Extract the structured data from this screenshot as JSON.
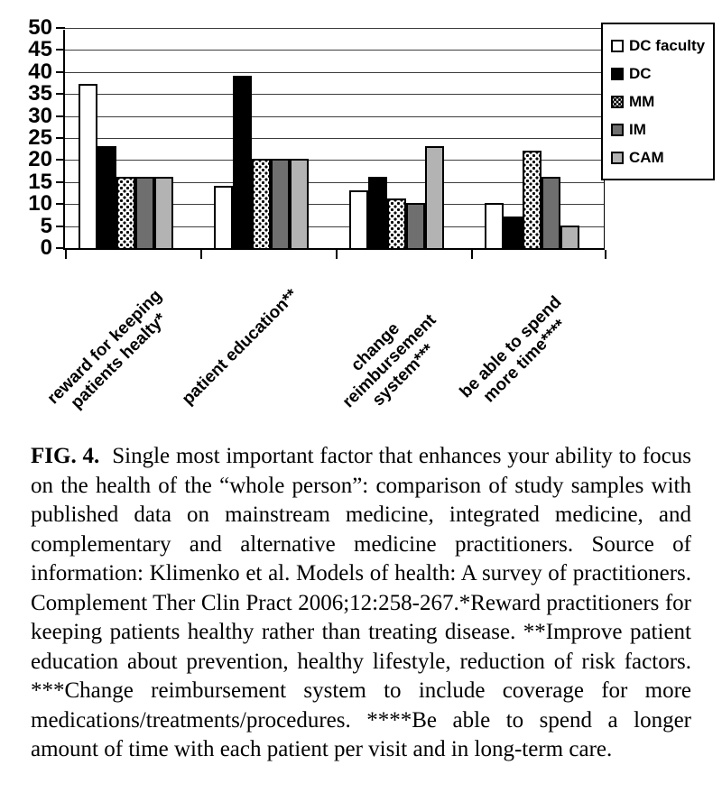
{
  "figure": {
    "caption_fig_label": "FIG. 4.",
    "caption_text": "Single most important factor that enhances your ability to focus on the health of the “whole person”: comparison of study samples with published data on mainstream medicine, integrated medicine, and complementary and alternative medicine practitioners. Source of information: Klimenko et al. Models of health: A survey of practitioners. Complement Ther Clin Pract 2006;12:258-267.*Reward practitioners for keeping patients healthy rather than treating disease. **Improve patient education about prevention, healthy lifestyle, reduction of risk factors. ***Change reimbursement system to include coverage for more medications/treatments/procedures. ****Be able to spend a longer amount of time with each patient per visit and in long-term care."
  },
  "chart_data": {
    "type": "bar",
    "title": "",
    "xlabel": "",
    "ylabel": "",
    "ylim": [
      0,
      50
    ],
    "ytick_step": 5,
    "grid": true,
    "legend_position": "top-right",
    "categories": [
      {
        "label": "reward for keeping patients healty*",
        "lines": [
          "reward for keeping",
          "patients healty*"
        ]
      },
      {
        "label": "patient education**",
        "lines": [
          "patient education**"
        ]
      },
      {
        "label": "change reimbursement system***",
        "lines": [
          "change",
          "reimbursement",
          "system***"
        ]
      },
      {
        "label": "be able to spend more time****",
        "lines": [
          "be able to spend",
          "more time****"
        ]
      }
    ],
    "series": [
      {
        "name": "DC faculty",
        "fill": "white",
        "values": [
          37,
          14,
          13,
          10
        ]
      },
      {
        "name": "DC",
        "fill": "black",
        "values": [
          23,
          39,
          16,
          7
        ]
      },
      {
        "name": "MM",
        "fill": "dotted",
        "values": [
          16,
          20,
          11,
          22
        ]
      },
      {
        "name": "IM",
        "fill": "darkgray",
        "values": [
          16,
          20,
          10,
          16
        ]
      },
      {
        "name": "CAM",
        "fill": "lightgray",
        "values": [
          16,
          20,
          23,
          5
        ]
      }
    ],
    "colors": {
      "white": "#ffffff",
      "black": "#000000",
      "darkgray": "#6f6f6f",
      "lightgray": "#b3b3b3",
      "axis": "#000000",
      "gridline": "#3d3d3d"
    }
  }
}
